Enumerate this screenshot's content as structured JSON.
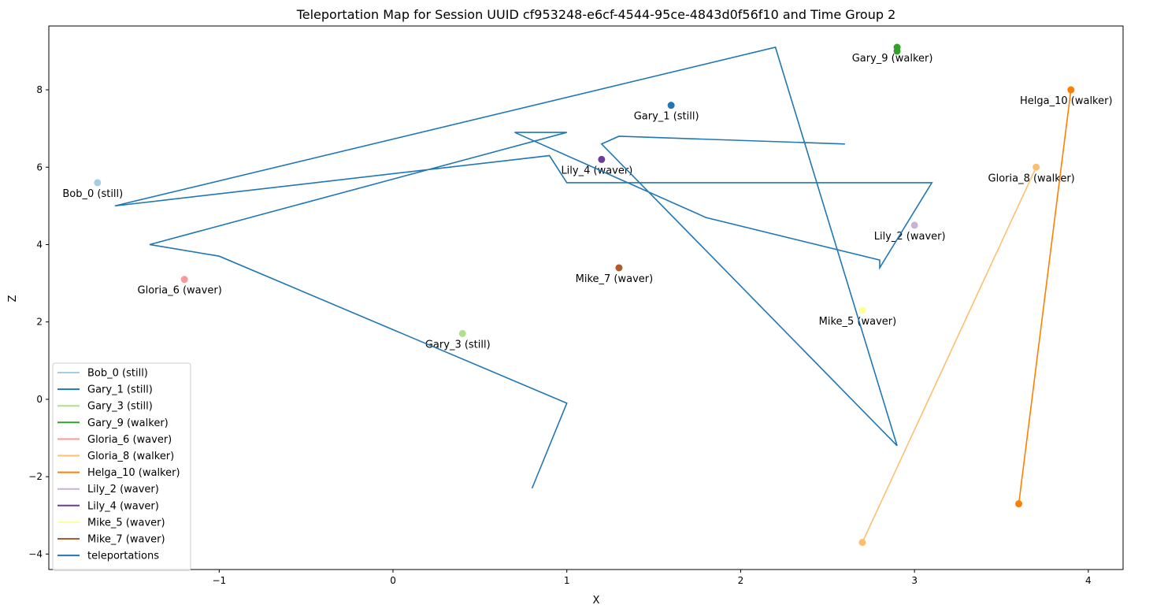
{
  "chart_data": {
    "type": "line",
    "title": "Teleportation Map for Session UUID cf953248-e6cf-4544-95ce-4843d0f56f10 and Time Group 2",
    "xlabel": "X",
    "ylabel": "Z",
    "xlim": [
      -1.98,
      4.2
    ],
    "ylim": [
      -4.4,
      9.65
    ],
    "xticks": [
      -1,
      0,
      1,
      2,
      3,
      4
    ],
    "yticks": [
      -4,
      -2,
      0,
      2,
      4,
      6,
      8
    ],
    "grid": false,
    "legend_position": "lower-left",
    "series": [
      {
        "name": "Bob_0 (still)",
        "label": "Bob_0 (still)",
        "color": "#a6cee3",
        "points": [
          [
            -1.7,
            5.6
          ]
        ]
      },
      {
        "name": "Gary_1 (still)",
        "label": "Gary_1 (still)",
        "color": "#1f78b4",
        "points": [
          [
            1.6,
            7.6
          ]
        ]
      },
      {
        "name": "Gary_3 (still)",
        "label": "Gary_3 (still)",
        "color": "#b2df8a",
        "points": [
          [
            0.4,
            1.7
          ]
        ]
      },
      {
        "name": "Gary_9 (walker)",
        "label": "Gary_9 (walker)",
        "color": "#33a02c",
        "points": [
          [
            2.9,
            9.0
          ],
          [
            2.9,
            9.1
          ]
        ]
      },
      {
        "name": "Gloria_6 (waver)",
        "label": "Gloria_6 (waver)",
        "color": "#fb9a99",
        "points": [
          [
            -1.2,
            3.1
          ]
        ]
      },
      {
        "name": "Gloria_8 (walker)",
        "label": "Gloria_8 (walker)",
        "color": "#fdbf6f",
        "points": [
          [
            2.7,
            -3.7
          ],
          [
            3.7,
            6.0
          ]
        ]
      },
      {
        "name": "Helga_10 (walker)",
        "label": "Helga_10 (walker)",
        "color": "#ff7f00",
        "points": [
          [
            3.6,
            -2.7
          ],
          [
            3.9,
            8.0
          ]
        ]
      },
      {
        "name": "Lily_2 (waver)",
        "label": "Lily_2 (waver)",
        "color": "#cab2d6",
        "points": [
          [
            3.0,
            4.5
          ]
        ]
      },
      {
        "name": "Lily_4 (waver)",
        "label": "Lily_4 (waver)",
        "color": "#6a3d9a",
        "points": [
          [
            1.2,
            6.2
          ]
        ]
      },
      {
        "name": "Mike_5 (waver)",
        "label": "Mike_5 (waver)",
        "color": "#ffff99",
        "points": [
          [
            2.7,
            2.3
          ]
        ]
      },
      {
        "name": "Mike_7 (waver)",
        "label": "Mike_7 (waver)",
        "color": "#b15928",
        "points": [
          [
            1.3,
            3.4
          ]
        ]
      }
    ],
    "teleportations": {
      "name": "teleportations",
      "color": "#1f77b4",
      "points": [
        [
          0.8,
          -2.3
        ],
        [
          1.0,
          -0.1
        ],
        [
          -1.0,
          3.7
        ],
        [
          -1.4,
          4.0
        ],
        [
          1.0,
          6.9
        ],
        [
          0.7,
          6.9
        ],
        [
          1.8,
          4.7
        ],
        [
          2.8,
          3.6
        ],
        [
          2.8,
          3.4
        ],
        [
          3.1,
          5.6
        ],
        [
          1.0,
          5.6
        ],
        [
          0.9,
          6.3
        ],
        [
          -1.6,
          5.0
        ],
        [
          2.2,
          9.1
        ],
        [
          2.9,
          -1.2
        ],
        [
          1.2,
          6.6
        ],
        [
          1.3,
          6.8
        ],
        [
          2.6,
          6.6
        ]
      ]
    }
  }
}
